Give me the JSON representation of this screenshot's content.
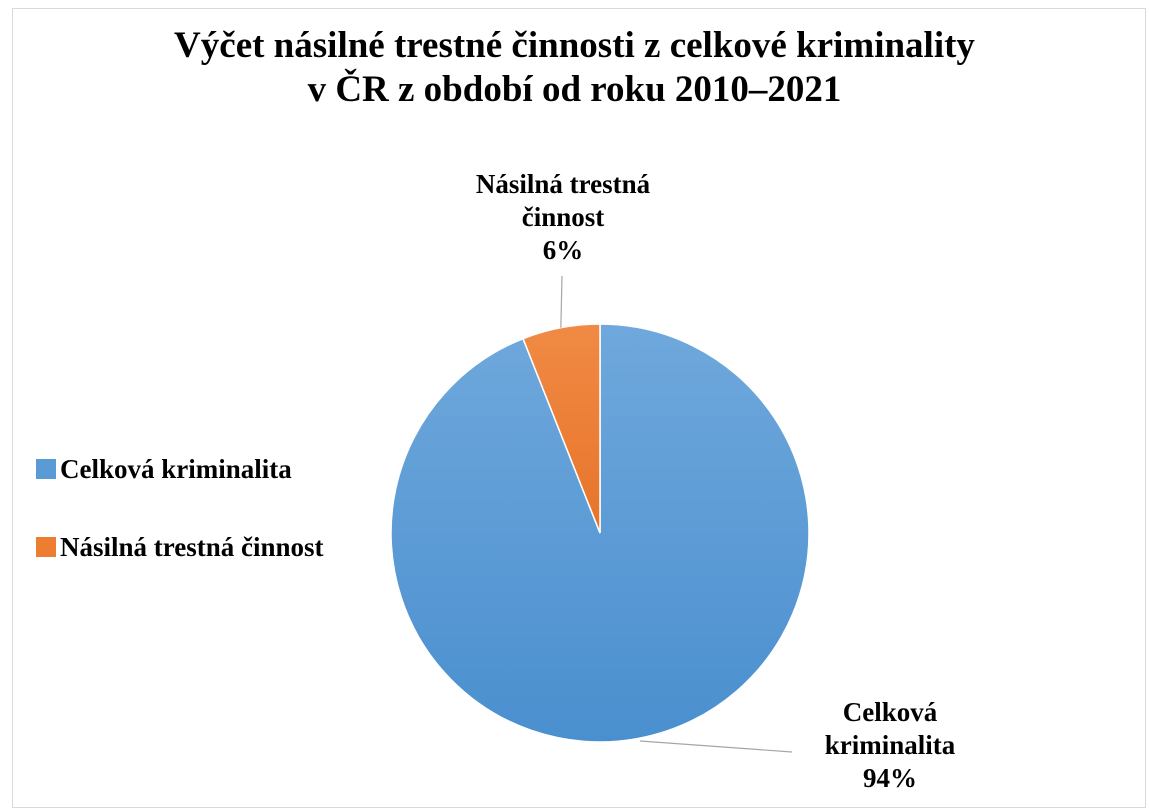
{
  "chart_data": {
    "type": "pie",
    "title_line1": "Výčet násilné trestné činnosti z celkové kriminality",
    "title_line2": "v ČR z období od roku 2010–2021",
    "categories": [
      "Celková kriminalita",
      "Násilná trestná činnost"
    ],
    "values": [
      94,
      6
    ],
    "colors": [
      "#5b9bd5",
      "#ed7d31"
    ],
    "legend_position": "left",
    "data_labels": [
      {
        "name_line1": "Celková",
        "name_line2": "kriminalita",
        "percent": "94%"
      },
      {
        "name_line1": "Násilná trestná",
        "name_line2": "činnost",
        "percent": "6%"
      }
    ]
  }
}
